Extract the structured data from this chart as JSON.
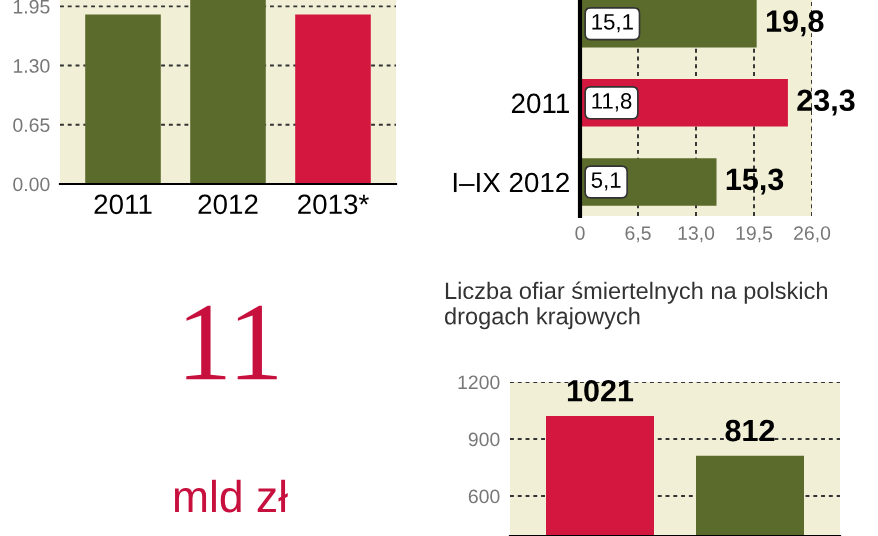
{
  "chart_data": [
    {
      "type": "bar",
      "categories": [
        "2011",
        "2012",
        "2013*"
      ],
      "values": [
        1.86,
        2.02,
        1.86
      ],
      "colors": [
        "#5b6b2b",
        "#5b6b2b",
        "#d3173f"
      ],
      "ylim": [
        0,
        2.02
      ],
      "yticks": [
        {
          "value": 0,
          "label": "0.00"
        },
        0.65,
        {
          "value": 1.3,
          "label": "1.30"
        },
        1.95
      ],
      "grid": "y"
    },
    {
      "type": "bar",
      "orientation": "horizontal",
      "categories": [
        null,
        "2011",
        "I–IX 2012"
      ],
      "values": [
        19.8,
        23.3,
        15.3
      ],
      "colors": [
        "#5b6b2b",
        "#d3173f",
        "#5b6b2b"
      ],
      "value_labels": [
        "19,8",
        "23,3",
        "15,3"
      ],
      "annotations": [
        "15,1",
        "11,8",
        "5,1"
      ],
      "xlim": [
        0,
        26
      ],
      "xticks": [
        0,
        {
          "value": 6.5,
          "label": "6,5"
        },
        {
          "value": 13,
          "label": "13,0"
        },
        {
          "value": 19.5,
          "label": "19,5"
        },
        {
          "value": 26,
          "label": "26,0"
        }
      ],
      "grid": "x"
    },
    {
      "type": "other",
      "annotations": [
        "11",
        "mld zł"
      ]
    },
    {
      "type": "bar",
      "title": "Liczba ofiar śmiertelnych na polskich drogach krajowych",
      "categories": [
        null,
        null
      ],
      "values": [
        1021,
        812
      ],
      "colors": [
        "#d3173f",
        "#5b6b2b"
      ],
      "data_labels": true,
      "ylim": [
        390,
        1200
      ],
      "yticks": [
        600,
        900,
        1200
      ],
      "grid": "y"
    }
  ]
}
